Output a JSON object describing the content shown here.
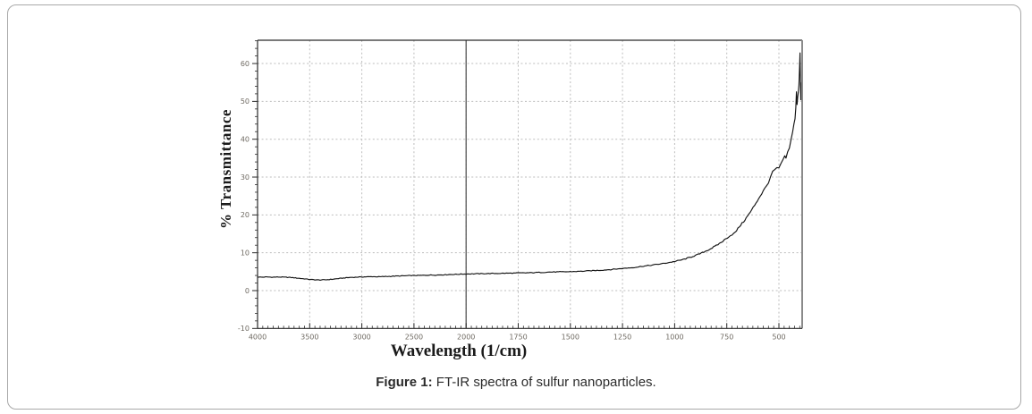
{
  "caption": {
    "label": "Figure 1:",
    "text": " FT-IR spectra of sulfur nanoparticles."
  },
  "chart_data": {
    "type": "line",
    "title": "",
    "xlabel": "Wavelength (1/cm)",
    "ylabel": "% Transmittance",
    "x_axis": {
      "direction": "reversed",
      "xlim": [
        4000,
        389
      ],
      "scale_break_at": 2000,
      "units_per_division_above_break": 500,
      "units_per_division_below_break": 250,
      "major_ticks": [
        4000,
        3500,
        3000,
        2500,
        2000,
        1750,
        1500,
        1250,
        1000,
        750,
        500
      ],
      "minor_step_above_break": 50,
      "minor_step_below_break": 25
    },
    "y_axis": {
      "ylim": [
        -10,
        66.2
      ],
      "major_ticks": [
        -10,
        0,
        10,
        20,
        30,
        40,
        50,
        60
      ],
      "minor_step": 2
    },
    "grid": {
      "style": "dashed",
      "at_major_ticks": true
    },
    "divider_line_x": 2000,
    "colors": {
      "curve": "#141414",
      "grid": "#bdbdbd",
      "axis": "#2a2a2a",
      "right_spine": "#8a8a8a",
      "divider": "#4a4a4a",
      "tick_label": "#6f6a62"
    },
    "noise": {
      "jitter_base": 0.1,
      "jitter_scale": 0.02
    },
    "series": [
      {
        "name": "sulfur nanoparticles",
        "points": [
          [
            4000,
            3.6
          ],
          [
            3950,
            3.55
          ],
          [
            3900,
            3.6
          ],
          [
            3850,
            3.55
          ],
          [
            3800,
            3.6
          ],
          [
            3750,
            3.55
          ],
          [
            3700,
            3.5
          ],
          [
            3650,
            3.4
          ],
          [
            3600,
            3.25
          ],
          [
            3550,
            3.1
          ],
          [
            3500,
            2.95
          ],
          [
            3450,
            2.85
          ],
          [
            3400,
            2.8
          ],
          [
            3350,
            2.85
          ],
          [
            3300,
            2.95
          ],
          [
            3250,
            3.1
          ],
          [
            3200,
            3.25
          ],
          [
            3150,
            3.4
          ],
          [
            3100,
            3.5
          ],
          [
            3050,
            3.55
          ],
          [
            3000,
            3.6
          ],
          [
            2950,
            3.65
          ],
          [
            2900,
            3.7
          ],
          [
            2850,
            3.65
          ],
          [
            2800,
            3.7
          ],
          [
            2750,
            3.75
          ],
          [
            2700,
            3.8
          ],
          [
            2650,
            3.85
          ],
          [
            2600,
            3.9
          ],
          [
            2550,
            3.95
          ],
          [
            2500,
            4.0
          ],
          [
            2450,
            4.0
          ],
          [
            2400,
            4.05
          ],
          [
            2350,
            4.1
          ],
          [
            2300,
            4.1
          ],
          [
            2250,
            4.15
          ],
          [
            2200,
            4.2
          ],
          [
            2150,
            4.25
          ],
          [
            2100,
            4.3
          ],
          [
            2050,
            4.35
          ],
          [
            2000,
            4.4
          ],
          [
            1950,
            4.45
          ],
          [
            1900,
            4.5
          ],
          [
            1850,
            4.55
          ],
          [
            1800,
            4.6
          ],
          [
            1750,
            4.65
          ],
          [
            1700,
            4.7
          ],
          [
            1650,
            4.8
          ],
          [
            1600,
            4.9
          ],
          [
            1550,
            4.95
          ],
          [
            1500,
            5.0
          ],
          [
            1450,
            5.1
          ],
          [
            1400,
            5.25
          ],
          [
            1350,
            5.4
          ],
          [
            1300,
            5.6
          ],
          [
            1250,
            5.85
          ],
          [
            1200,
            6.1
          ],
          [
            1150,
            6.45
          ],
          [
            1100,
            6.8
          ],
          [
            1050,
            7.2
          ],
          [
            1000,
            7.7
          ],
          [
            960,
            8.2
          ],
          [
            920,
            8.9
          ],
          [
            880,
            9.7
          ],
          [
            840,
            10.7
          ],
          [
            800,
            11.9
          ],
          [
            770,
            13.0
          ],
          [
            740,
            14.3
          ],
          [
            710,
            15.3
          ],
          [
            690,
            16.9
          ],
          [
            670,
            18.2
          ],
          [
            650,
            19.7
          ],
          [
            630,
            21.3
          ],
          [
            610,
            23.2
          ],
          [
            590,
            25.0
          ],
          [
            575,
            26.3
          ],
          [
            560,
            27.6
          ],
          [
            550,
            28.7
          ],
          [
            540,
            30.2
          ],
          [
            530,
            31.2
          ],
          [
            520,
            31.9
          ],
          [
            510,
            32.4
          ],
          [
            500,
            32.2
          ],
          [
            490,
            33.3
          ],
          [
            480,
            34.6
          ],
          [
            472,
            35.6
          ],
          [
            466,
            34.7
          ],
          [
            458,
            36.3
          ],
          [
            450,
            37.8
          ],
          [
            442,
            39.6
          ],
          [
            434,
            41.8
          ],
          [
            428,
            43.8
          ],
          [
            423,
            45.8
          ],
          [
            419,
            48.2
          ],
          [
            416,
            52.7
          ],
          [
            413,
            49.3
          ],
          [
            410,
            50.8
          ],
          [
            407,
            52.3
          ],
          [
            404,
            54.5
          ],
          [
            401,
            58.5
          ],
          [
            399,
            63.3
          ],
          [
            397,
            56.5
          ],
          [
            395,
            50.5
          ],
          [
            393,
            53.5
          ],
          [
            391,
            55.5
          ]
        ]
      }
    ]
  }
}
